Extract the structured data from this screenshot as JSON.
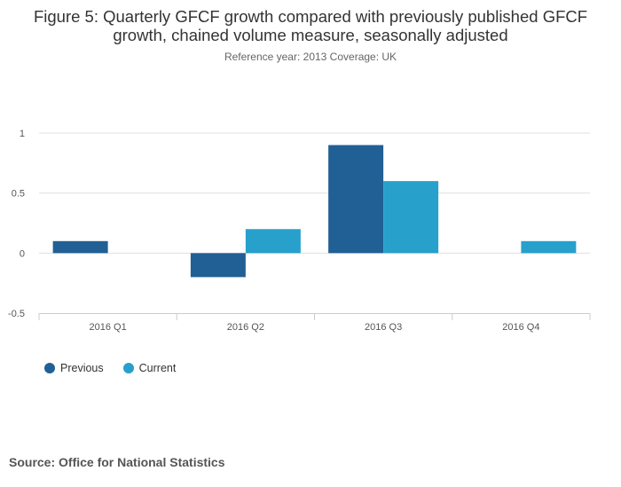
{
  "title_line1": "Figure 5: Quarterly GFCF growth compared with previously published GFCF",
  "title_line2": "growth, chained volume measure, seasonally adjusted",
  "subtitle": "Reference year: 2013 Coverage: UK",
  "source": "Source: Office for National Statistics",
  "colors": {
    "previous": "#206095",
    "current": "#27a0cc",
    "grid": "#e0e0e0",
    "axis": "#cccccc"
  },
  "chart_data": {
    "type": "bar",
    "categories": [
      "2016 Q1",
      "2016 Q2",
      "2016 Q3",
      "2016 Q4"
    ],
    "series": [
      {
        "name": "Previous",
        "values": [
          0.1,
          -0.2,
          0.9,
          0.0
        ]
      },
      {
        "name": "Current",
        "values": [
          0.0,
          0.2,
          0.6,
          0.1
        ]
      }
    ],
    "yticks": [
      "1",
      "0.5",
      "0",
      "-0.5"
    ],
    "ylim": [
      -0.5,
      1
    ],
    "grid": true,
    "legend": "bottom-left"
  }
}
